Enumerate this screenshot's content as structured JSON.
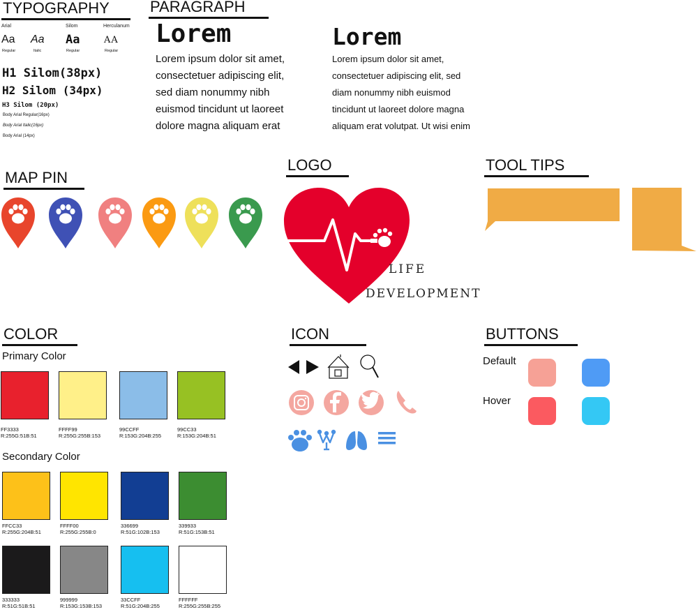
{
  "typography": {
    "title": "TYPOGRAPHY",
    "fonts": [
      {
        "name": "Arial",
        "sample": "Aa",
        "style": "Regular"
      },
      {
        "name": "",
        "sample": "Aa",
        "style": "Italic"
      },
      {
        "name": "Silom",
        "sample": "Aa",
        "style": "Regular"
      },
      {
        "name": "Herculanum",
        "sample": "AA",
        "style": "Regular"
      }
    ],
    "h1": "H1 Silom(38px)",
    "h2": "H2 Silom (34px)",
    "h3": "H3 Silom (20px)",
    "body1": "Body Arial Regular(16px)",
    "body2": "Body Arial Italic(16px)",
    "body3": "Body Arial (14px)"
  },
  "paragraph": {
    "title": "PARAGRAPH",
    "col1_heading": "Lorem",
    "col1_lines": [
      "Lorem ipsum dolor sit amet,",
      "consectetuer adipiscing elit,",
      "sed diam nonummy nibh",
      "euismod tincidunt ut laoreet",
      "dolore magna aliquam erat"
    ],
    "col2_heading": "Lorem",
    "col2_lines": [
      "Lorem ipsum dolor sit amet,",
      "consectetuer adipiscing elit, sed",
      "diam nonummy nibh euismod",
      "tincidunt ut laoreet dolore magna",
      "aliquam erat volutpat. Ut wisi enim"
    ]
  },
  "map_pin": {
    "title": "MAP PIN",
    "colors": [
      "#e8452c",
      "#3f51b5",
      "#f08080",
      "#fb9a12",
      "#eee05a",
      "#3a9a4e"
    ]
  },
  "logo": {
    "title": "LOGO",
    "line1": "LIFE",
    "line2": "DEVELOPMENT",
    "heart_color": "#e4002b"
  },
  "tooltips": {
    "title": "TOOL TIPS",
    "color": "#f0ab45"
  },
  "color": {
    "title": "COLOR",
    "primary_label": "Primary Color",
    "primary": [
      {
        "hex": "#FF3333",
        "code": "FF3333",
        "rgb": "R:255G:51B:51",
        "fill": "#e8212d"
      },
      {
        "hex": "#FFFF99",
        "code": "FFFF99",
        "rgb": "R:255G:255B:153",
        "fill": "#fff089"
      },
      {
        "hex": "#99CCFF",
        "code": "99CCFF",
        "rgb": "R:153G:204B:255",
        "fill": "#8bbde8"
      },
      {
        "hex": "#99CC33",
        "code": "99CC33",
        "rgb": "R:153G:204B:51",
        "fill": "#97c123"
      }
    ],
    "secondary_label": "Secondary Color",
    "secondary": [
      {
        "code": "FFCC33",
        "rgb": "R:255G:204B:51",
        "fill": "#fdc119"
      },
      {
        "code": "FFFF00",
        "rgb": "R:255G:255B:0",
        "fill": "#ffe500"
      },
      {
        "code": "336699",
        "rgb": "R:51G:102B:153",
        "fill": "#123e93"
      },
      {
        "code": "339933",
        "rgb": "R:51G:153B:51",
        "fill": "#3c8d31"
      },
      {
        "code": "333333",
        "rgb": "R:51G:51B:51",
        "fill": "#1b1a1b"
      },
      {
        "code": "999999",
        "rgb": "R:153G:153B:153",
        "fill": "#878787"
      },
      {
        "code": "33CCFF",
        "rgb": "R:51G:204B:255",
        "fill": "#16bff0"
      },
      {
        "code": "FFFFFF",
        "rgb": "R:255G:255B:255",
        "fill": "#ffffff"
      }
    ]
  },
  "icon": {
    "title": "ICON",
    "icons": [
      "arrow-left-icon",
      "arrow-right-icon",
      "home-icon",
      "search-icon",
      "instagram-icon",
      "facebook-icon",
      "twitter-icon",
      "phone-icon",
      "paw-icon",
      "crown-icon",
      "lungs-icon",
      "menu-icon"
    ],
    "social_color": "#f4a7a0",
    "blue": "#4a90e2"
  },
  "buttons": {
    "title": "BUTTONS",
    "default_label": "Default",
    "hover_label": "Hover",
    "default_colors": [
      "#f6a196",
      "#4f9bf5"
    ],
    "hover_colors": [
      "#fb5a60",
      "#34c8f4"
    ]
  }
}
